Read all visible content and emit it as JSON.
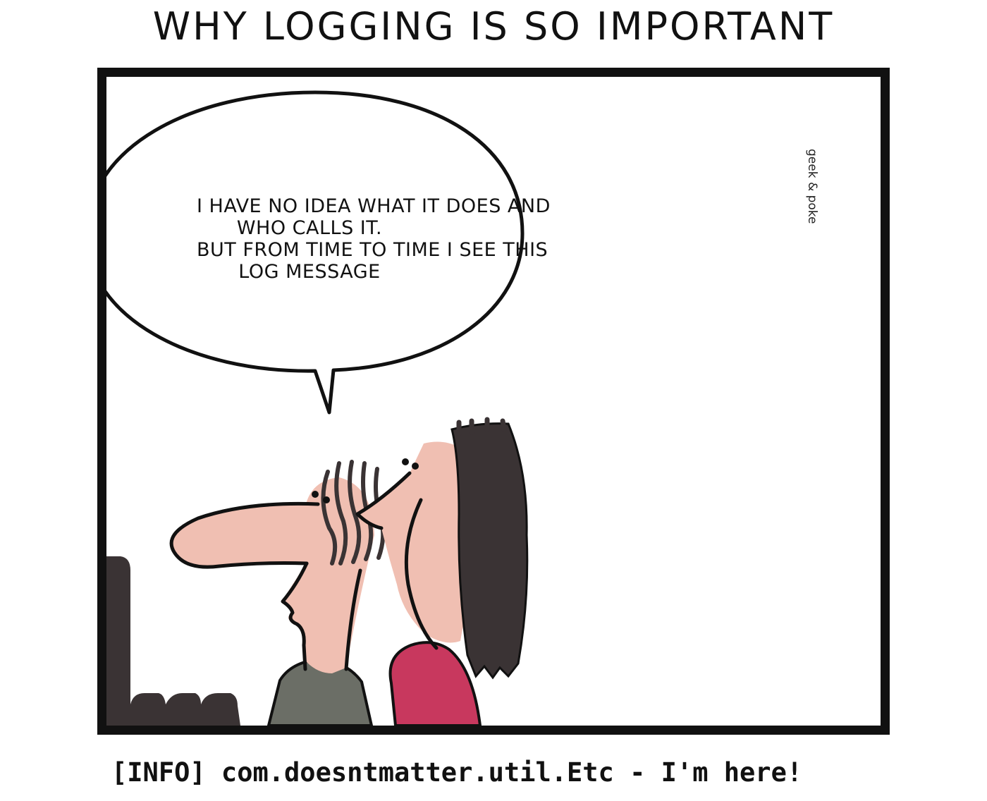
{
  "comic": {
    "title": "WHY LOGGING IS SO IMPORTANT",
    "speech_lines": [
      "I HAVE NO IDEA WHAT IT DOES AND",
      "WHO CALLS IT.",
      "BUT FROM TIME TO TIME I SEE THIS",
      "LOG MESSAGE"
    ],
    "credit": "geek & poke",
    "caption": "[INFO] com.doesntmatter.util.Etc - I'm here!"
  },
  "colors": {
    "ink": "#111111",
    "skin": "#f0bfb2",
    "hair": "#3a3334",
    "shirt_left": "#6b6e66",
    "shirt_right": "#c8385e"
  }
}
